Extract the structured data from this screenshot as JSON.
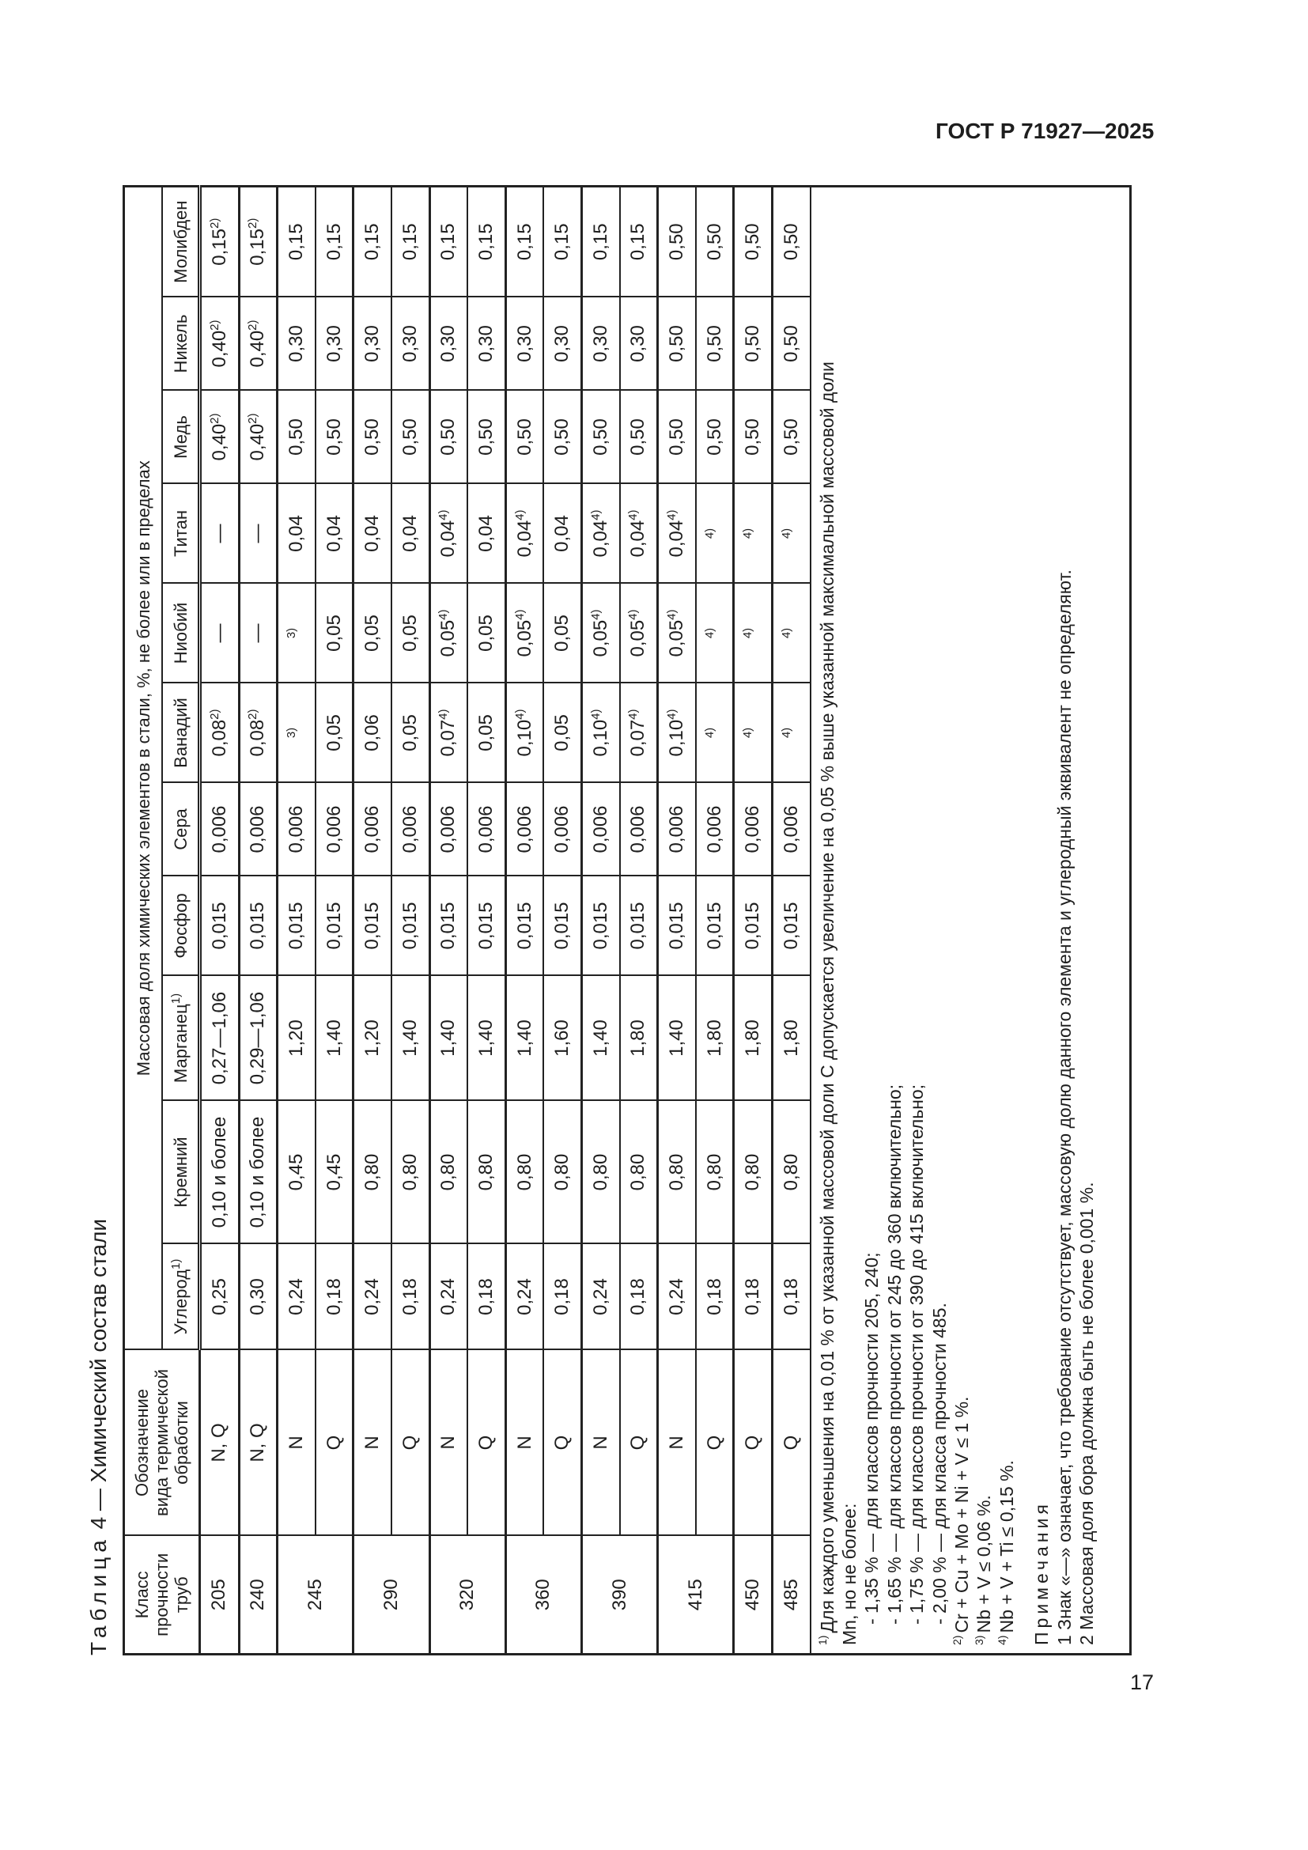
{
  "header": {
    "doc_code": "ГОСТ Р 71927—2025"
  },
  "page_number": "17",
  "table": {
    "caption_label": "Таблица",
    "caption_text": "4 — Химический состав стали",
    "col_class": [
      "Класс",
      "прочности",
      "труб"
    ],
    "col_treatment": [
      "Обозначение",
      "вида термической",
      "обработки"
    ],
    "group_header": "Массовая доля химических элементов в стали, %, не более или в пределах",
    "elements": [
      {
        "name": "Углерод",
        "sup": "1)"
      },
      {
        "name": "Кремний"
      },
      {
        "name": "Марганец",
        "sup": "1)"
      },
      {
        "name": "Фосфор"
      },
      {
        "name": "Сера"
      },
      {
        "name": "Ванадий"
      },
      {
        "name": "Ниобий"
      },
      {
        "name": "Титан"
      },
      {
        "name": "Медь"
      },
      {
        "name": "Никель"
      },
      {
        "name": "Молибден"
      }
    ],
    "groups": [
      {
        "class": "205",
        "rows": [
          {
            "treatment": "N, Q",
            "values": [
              "0,25",
              "0,10 и более",
              "0,27—1,06",
              "0,015",
              "0,006",
              {
                "v": "0,08",
                "s": "2)"
              },
              "—",
              "—",
              {
                "v": "0,40",
                "s": "2)"
              },
              {
                "v": "0,40",
                "s": "2)"
              },
              {
                "v": "0,15",
                "s": "2)"
              }
            ]
          }
        ]
      },
      {
        "class": "240",
        "rows": [
          {
            "treatment": "N, Q",
            "values": [
              "0,30",
              "0,10 и более",
              "0,29—1,06",
              "0,015",
              "0,006",
              {
                "v": "0,08",
                "s": "2)"
              },
              "—",
              "—",
              {
                "v": "0,40",
                "s": "2)"
              },
              {
                "v": "0,40",
                "s": "2)"
              },
              {
                "v": "0,15",
                "s": "2)"
              }
            ]
          }
        ]
      },
      {
        "class": "245",
        "rows": [
          {
            "treatment": "N",
            "values": [
              "0,24",
              "0,45",
              "1,20",
              "0,015",
              "0,006",
              {
                "v": "",
                "s": "3)"
              },
              {
                "v": "",
                "s": "3)"
              },
              "0,04",
              "0,50",
              "0,30",
              "0,15"
            ]
          },
          {
            "treatment": "Q",
            "values": [
              "0,18",
              "0,45",
              "1,40",
              "0,015",
              "0,006",
              "0,05",
              "0,05",
              "0,04",
              "0,50",
              "0,30",
              "0,15"
            ]
          }
        ]
      },
      {
        "class": "290",
        "rows": [
          {
            "treatment": "N",
            "values": [
              "0,24",
              "0,80",
              "1,20",
              "0,015",
              "0,006",
              "0,06",
              "0,05",
              "0,04",
              "0,50",
              "0,30",
              "0,15"
            ]
          },
          {
            "treatment": "Q",
            "values": [
              "0,18",
              "0,80",
              "1,40",
              "0,015",
              "0,006",
              "0,05",
              "0,05",
              "0,04",
              "0,50",
              "0,30",
              "0,15"
            ]
          }
        ]
      },
      {
        "class": "320",
        "rows": [
          {
            "treatment": "N",
            "values": [
              "0,24",
              "0,80",
              "1,40",
              "0,015",
              "0,006",
              {
                "v": "0,07",
                "s": "4)"
              },
              {
                "v": "0,05",
                "s": "4)"
              },
              {
                "v": "0,04",
                "s": "4)"
              },
              "0,50",
              "0,30",
              "0,15"
            ]
          },
          {
            "treatment": "Q",
            "values": [
              "0,18",
              "0,80",
              "1,40",
              "0,015",
              "0,006",
              "0,05",
              "0,05",
              "0,04",
              "0,50",
              "0,30",
              "0,15"
            ]
          }
        ]
      },
      {
        "class": "360",
        "rows": [
          {
            "treatment": "N",
            "values": [
              "0,24",
              "0,80",
              "1,40",
              "0,015",
              "0,006",
              {
                "v": "0,10",
                "s": "4)"
              },
              {
                "v": "0,05",
                "s": "4)"
              },
              {
                "v": "0,04",
                "s": "4)"
              },
              "0,50",
              "0,30",
              "0,15"
            ]
          },
          {
            "treatment": "Q",
            "values": [
              "0,18",
              "0,80",
              "1,60",
              "0,015",
              "0,006",
              "0,05",
              "0,05",
              "0,04",
              "0,50",
              "0,30",
              "0,15"
            ]
          }
        ]
      },
      {
        "class": "390",
        "rows": [
          {
            "treatment": "N",
            "values": [
              "0,24",
              "0,80",
              "1,40",
              "0,015",
              "0,006",
              {
                "v": "0,10",
                "s": "4)"
              },
              {
                "v": "0,05",
                "s": "4)"
              },
              {
                "v": "0,04",
                "s": "4)"
              },
              "0,50",
              "0,30",
              "0,15"
            ]
          },
          {
            "treatment": "Q",
            "values": [
              "0,18",
              "0,80",
              "1,80",
              "0,015",
              "0,006",
              {
                "v": "0,07",
                "s": "4)"
              },
              {
                "v": "0,05",
                "s": "4)"
              },
              {
                "v": "0,04",
                "s": "4)"
              },
              "0,50",
              "0,30",
              "0,15"
            ]
          }
        ]
      },
      {
        "class": "415",
        "rows": [
          {
            "treatment": "N",
            "values": [
              "0,24",
              "0,80",
              "1,40",
              "0,015",
              "0,006",
              {
                "v": "0,10",
                "s": "4)"
              },
              {
                "v": "0,05",
                "s": "4)"
              },
              {
                "v": "0,04",
                "s": "4)"
              },
              "0,50",
              "0,50",
              "0,50"
            ]
          },
          {
            "treatment": "Q",
            "values": [
              "0,18",
              "0,80",
              "1,80",
              "0,015",
              "0,006",
              {
                "v": "",
                "s": "4)"
              },
              {
                "v": "",
                "s": "4)"
              },
              {
                "v": "",
                "s": "4)"
              },
              "0,50",
              "0,50",
              "0,50"
            ]
          }
        ]
      },
      {
        "class": "450",
        "rows": [
          {
            "treatment": "Q",
            "values": [
              "0,18",
              "0,80",
              "1,80",
              "0,015",
              "0,006",
              {
                "v": "",
                "s": "4)"
              },
              {
                "v": "",
                "s": "4)"
              },
              {
                "v": "",
                "s": "4)"
              },
              "0,50",
              "0,50",
              "0,50"
            ]
          }
        ]
      },
      {
        "class": "485",
        "rows": [
          {
            "treatment": "Q",
            "values": [
              "0,18",
              "0,80",
              "1,80",
              "0,015",
              "0,006",
              {
                "v": "",
                "s": "4)"
              },
              {
                "v": "",
                "s": "4)"
              },
              {
                "v": "",
                "s": "4)"
              },
              "0,50",
              "0,50",
              "0,50"
            ]
          }
        ]
      }
    ],
    "footnotes": [
      {
        "sup": "1)",
        "text": "Для каждого уменьшения на 0,01 % от указанной массовой доли С допускается увеличение на 0,05 % выше указанной максимальной массовой доли"
      },
      {
        "text": "Mn, но не более:"
      },
      {
        "text": "- 1,35 % — для классов прочности 205, 240;",
        "indent": true
      },
      {
        "text": "- 1,65 % — для классов прочности от 245 до 360 включительно;",
        "indent": true
      },
      {
        "text": "- 1,75 % — для классов прочности от 390 до 415 включительно;",
        "indent": true
      },
      {
        "text": "- 2,00 % — для класса прочности 485.",
        "indent": true
      },
      {
        "sup": "2)",
        "text": "Cr + Cu + Mo + Ni + V ≤ 1 %."
      },
      {
        "sup": "3)",
        "text": "Nb + V ≤ 0,06 %."
      },
      {
        "sup": "4)",
        "text": "Nb + V + Ti ≤ 0,15 %."
      }
    ],
    "notes_title": "Примечания",
    "notes": [
      "1 Знак «—» означает, что требование отсутствует, массовую долю данного элемента и углеродный эквивалент не определяют.",
      "2 Массовая доля бора должна быть не более 0,001 %."
    ]
  }
}
